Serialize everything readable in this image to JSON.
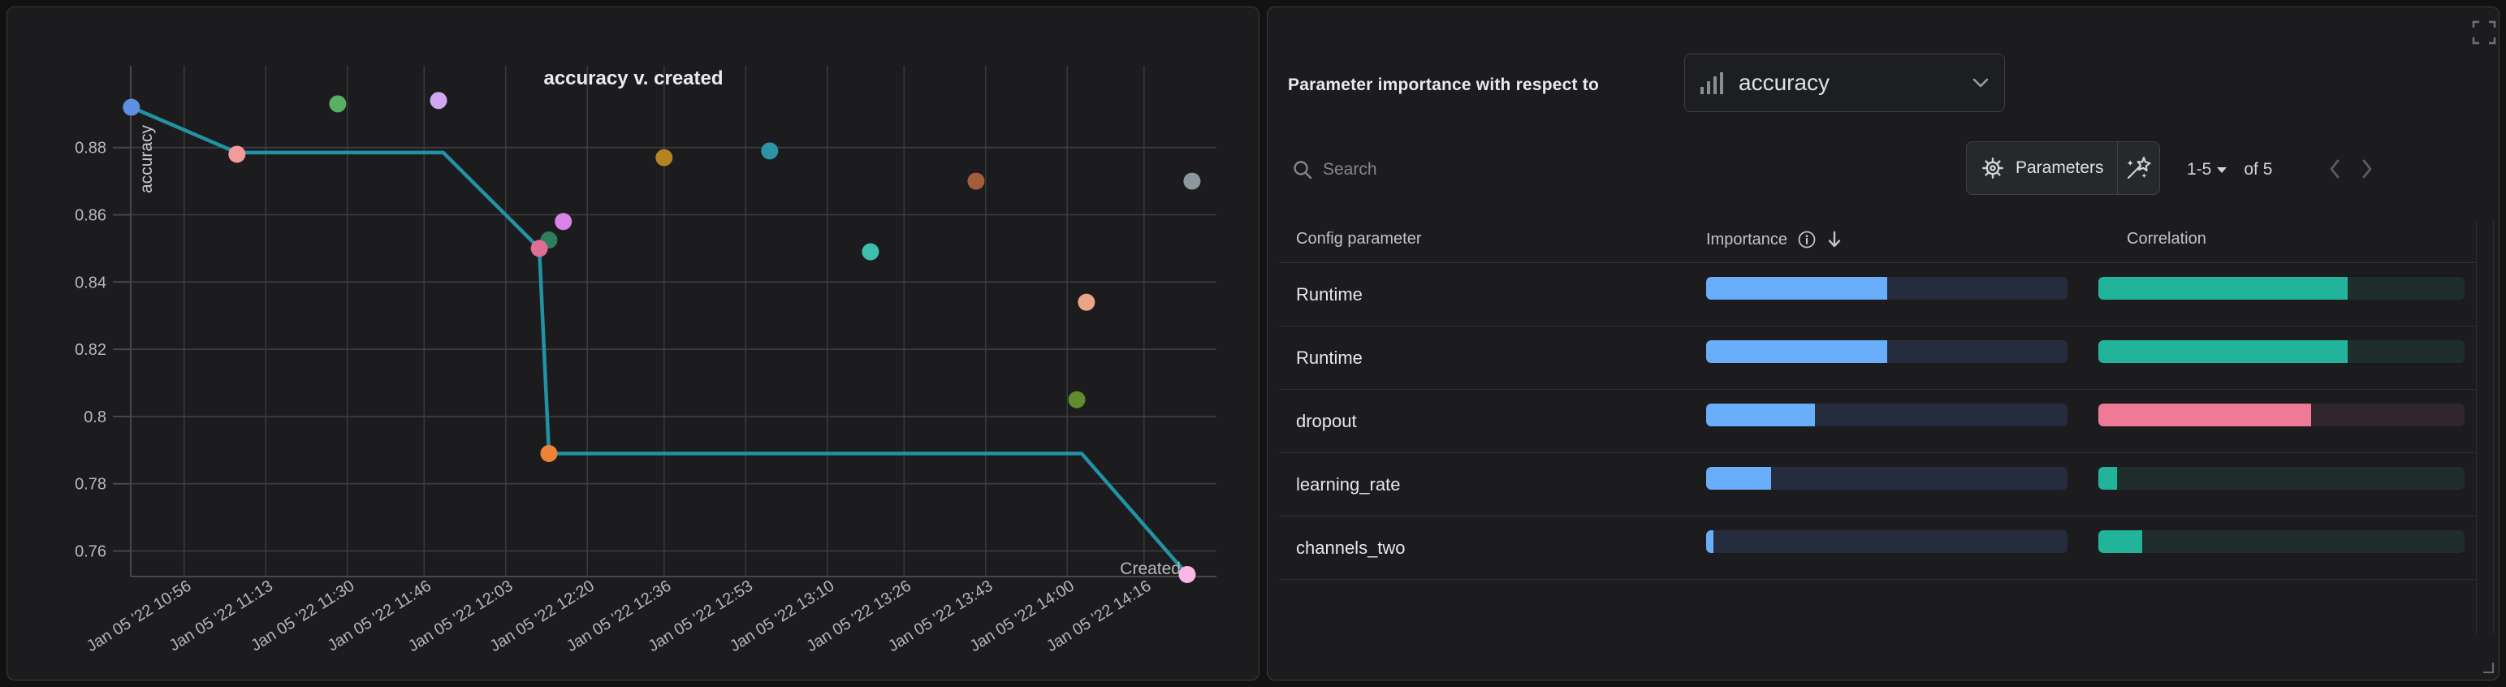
{
  "chart_data": {
    "type": "scatter",
    "title": "accuracy v. created",
    "xlabel": "Created",
    "ylabel": "accuracy",
    "grid": true,
    "x_ticks": [
      "Jan 05 '22 10:56",
      "Jan 05 '22 11:13",
      "Jan 05 '22 11:30",
      "Jan 05 '22 11:46",
      "Jan 05 '22 12:03",
      "Jan 05 '22 12:20",
      "Jan 05 '22 12:36",
      "Jan 05 '22 12:53",
      "Jan 05 '22 13:10",
      "Jan 05 '22 13:26",
      "Jan 05 '22 13:43",
      "Jan 05 '22 14:00",
      "Jan 05 '22 14:16"
    ],
    "x_tick_times": [
      "10:56",
      "11:13",
      "11:30",
      "11:46",
      "12:03",
      "12:20",
      "12:36",
      "12:53",
      "13:10",
      "13:26",
      "13:43",
      "14:00",
      "14:16"
    ],
    "y_ticks": [
      0.76,
      0.78,
      0.8,
      0.82,
      0.84,
      0.86,
      0.88
    ],
    "ylim": [
      0.7525,
      0.9045
    ],
    "xlim_time": [
      "10:44",
      "14:31"
    ],
    "points": [
      {
        "time": "10:45",
        "accuracy": 0.892,
        "color": "#5f8fe0"
      },
      {
        "time": "11:07",
        "accuracy": 0.878,
        "color": "#f59a9a"
      },
      {
        "time": "11:28",
        "accuracy": 0.893,
        "color": "#57b066"
      },
      {
        "time": "11:49",
        "accuracy": 0.894,
        "color": "#d2a7f2"
      },
      {
        "time": "12:15",
        "accuracy": 0.858,
        "color": "#d883e8"
      },
      {
        "time": "12:12",
        "accuracy": 0.8525,
        "color": "#2e7d5b"
      },
      {
        "time": "12:10",
        "accuracy": 0.85,
        "color": "#dd6e95"
      },
      {
        "time": "12:12",
        "accuracy": 0.789,
        "color": "#ee8338"
      },
      {
        "time": "12:36",
        "accuracy": 0.877,
        "color": "#b5831f"
      },
      {
        "time": "12:58",
        "accuracy": 0.879,
        "color": "#2f93a8"
      },
      {
        "time": "13:19",
        "accuracy": 0.849,
        "color": "#3cbfad"
      },
      {
        "time": "13:41",
        "accuracy": 0.87,
        "color": "#a55c3a"
      },
      {
        "time": "14:02",
        "accuracy": 0.805,
        "color": "#618c2d"
      },
      {
        "time": "14:04",
        "accuracy": 0.834,
        "color": "#eca488"
      },
      {
        "time": "14:26",
        "accuracy": 0.87,
        "color": "#8d979e"
      },
      {
        "time": "14:25",
        "accuracy": 0.753,
        "color": "#f9b7e5"
      }
    ],
    "line": {
      "color": "#2292a4",
      "vertices": [
        {
          "time": "10:45",
          "accuracy": 0.892
        },
        {
          "time": "11:07",
          "accuracy": 0.8785
        },
        {
          "time": "11:50",
          "accuracy": 0.8785
        },
        {
          "time": "12:10",
          "accuracy": 0.85
        },
        {
          "time": "12:12",
          "accuracy": 0.789
        },
        {
          "time": "14:03",
          "accuracy": 0.789
        },
        {
          "time": "14:25",
          "accuracy": 0.753
        }
      ]
    }
  },
  "right_panel": {
    "title_label": "Parameter importance with respect to",
    "metric_selector": {
      "value": "accuracy",
      "icon": "bar-chart-icon"
    },
    "search": {
      "placeholder": "Search"
    },
    "parameters_button_label": "Parameters",
    "pagination": {
      "range": "1-5",
      "of_label": "of 5"
    },
    "table": {
      "columns": {
        "param": "Config parameter",
        "importance": "Importance",
        "correlation": "Correlation"
      },
      "rows": [
        {
          "param": "Runtime",
          "importance": 0.5,
          "correlation": 0.68,
          "correlation_sign": "positive"
        },
        {
          "param": "Runtime",
          "importance": 0.5,
          "correlation": 0.68,
          "correlation_sign": "positive"
        },
        {
          "param": "dropout",
          "importance": 0.3,
          "correlation": 0.58,
          "correlation_sign": "negative"
        },
        {
          "param": "learning_rate",
          "importance": 0.18,
          "correlation": 0.05,
          "correlation_sign": "positive"
        },
        {
          "param": "channels_two",
          "importance": 0.015,
          "correlation": 0.12,
          "correlation_sign": "positive"
        }
      ]
    },
    "colors": {
      "importance_fill": "#69aefb",
      "importance_track": "#242c3d",
      "correlation_positive": "#21b49b",
      "correlation_positive_track": "#1f2e2b",
      "correlation_negative": "#ef7a98",
      "correlation_negative_track": "#30262b"
    }
  }
}
